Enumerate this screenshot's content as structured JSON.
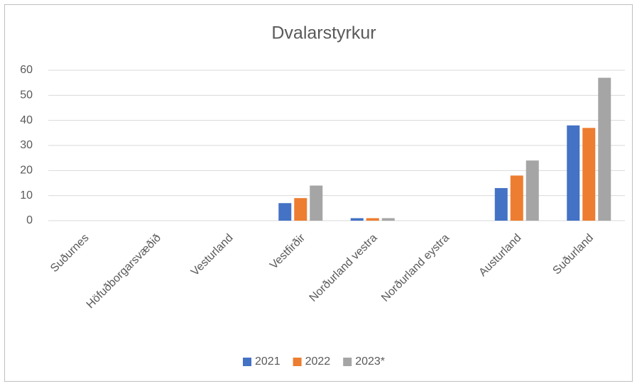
{
  "chart_data": {
    "type": "bar",
    "title": "Dvalarstyrkur",
    "categories": [
      "Suðurnes",
      "Höfuðborgarsvæðið",
      "Vesturland",
      "Vestfirðir",
      "Norðurland vestra",
      "Norðurland eystra",
      "Austurland",
      "Suðurland"
    ],
    "series": [
      {
        "name": "2021",
        "color": "#4472c4",
        "values": [
          0,
          0,
          0,
          7,
          1,
          0,
          13,
          38
        ]
      },
      {
        "name": "2022",
        "color": "#ed7d31",
        "values": [
          0,
          0,
          0,
          9,
          1,
          0,
          18,
          37
        ]
      },
      {
        "name": "2023*",
        "color": "#a5a5a5",
        "values": [
          0,
          0,
          0,
          14,
          1,
          0,
          24,
          57
        ]
      }
    ],
    "ylim": [
      0,
      60
    ],
    "yticks": [
      0,
      10,
      20,
      30,
      40,
      50,
      60
    ],
    "grid": true,
    "legend": "bottom"
  }
}
